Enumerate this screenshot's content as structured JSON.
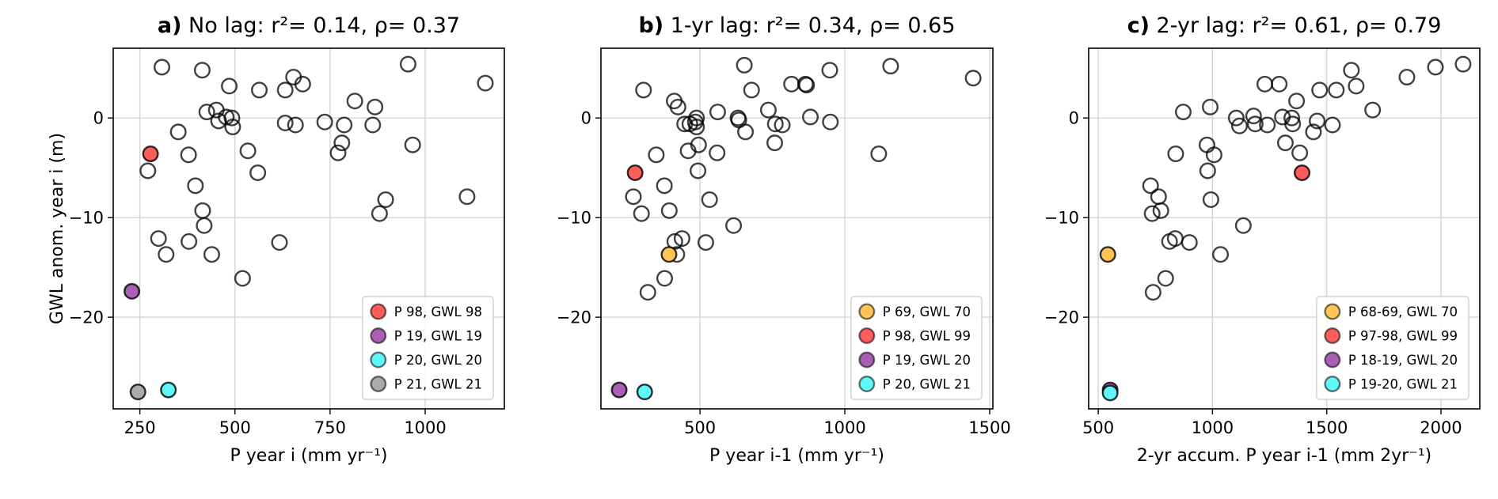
{
  "chart_data": [
    {
      "type": "scatter",
      "panel_label": "a)",
      "title": "No lag: r²= 0.14, ρ= 0.37",
      "xlabel": "P year i (mm yr⁻¹)",
      "ylabel": "GWL anom. year i (m)",
      "xlim": [
        180,
        1208
      ],
      "ylim": [
        -29.2,
        7.0
      ],
      "xticks": [
        250,
        500,
        750,
        1000
      ],
      "yticks": [
        0,
        -10,
        -20
      ],
      "grid": true,
      "legend_placement": "lower-right",
      "points": [
        [
          308,
          5.1
        ],
        [
          414,
          4.8
        ],
        [
          485,
          3.2
        ],
        [
          564,
          2.8
        ],
        [
          632,
          2.8
        ],
        [
          654,
          4.1
        ],
        [
          678,
          3.4
        ],
        [
          955,
          5.4
        ],
        [
          815,
          1.7
        ],
        [
          868,
          1.1
        ],
        [
          426,
          0.6
        ],
        [
          451,
          0.8
        ],
        [
          457,
          -0.3
        ],
        [
          477,
          0.1
        ],
        [
          492,
          0
        ],
        [
          494,
          -0.9
        ],
        [
          632,
          -0.5
        ],
        [
          659,
          -0.7
        ],
        [
          736,
          -0.4
        ],
        [
          787,
          -0.7
        ],
        [
          862,
          -0.7
        ],
        [
          351,
          -1.4
        ],
        [
          781,
          -2.5
        ],
        [
          771,
          -3.5
        ],
        [
          967,
          -2.7
        ],
        [
          378,
          -3.7
        ],
        [
          271,
          -5.3
        ],
        [
          534,
          -3.3
        ],
        [
          560,
          -5.5
        ],
        [
          396,
          -6.8
        ],
        [
          415,
          -9.3
        ],
        [
          419,
          -10.8
        ],
        [
          896,
          -8.2
        ],
        [
          880,
          -9.6
        ],
        [
          299,
          -12.1
        ],
        [
          319,
          -13.7
        ],
        [
          379,
          -12.4
        ],
        [
          439,
          -13.7
        ],
        [
          617,
          -12.5
        ],
        [
          520,
          -16.1
        ],
        [
          1158,
          3.5
        ],
        [
          1110,
          -7.9
        ]
      ],
      "highlights": [
        {
          "label": "P 98, GWL 98",
          "color": "#ff5c5c",
          "x": 278,
          "y": -3.6
        },
        {
          "label": "P 19, GWL 19",
          "color": "#a95fb3",
          "x": 229,
          "y": -17.4
        },
        {
          "label": "P 20, GWL 20",
          "color": "#5ff7f7",
          "x": 325,
          "y": -27.3
        },
        {
          "label": "P 21, GWL 21",
          "color": "#aaaaaa",
          "x": 245,
          "y": -27.5
        }
      ]
    },
    {
      "type": "scatter",
      "panel_label": "b)",
      "title": "1-yr lag: r²= 0.34, ρ= 0.65",
      "xlabel": "P year i-1 (mm yr⁻¹)",
      "ylabel": "",
      "xlim": [
        158,
        1511
      ],
      "ylim": [
        -29.2,
        7.0
      ],
      "xticks": [
        500,
        1000,
        1500
      ],
      "yticks": [
        0,
        -10,
        -20
      ],
      "grid": true,
      "legend_placement": "lower-right",
      "points": [
        [
          305,
          2.8
        ],
        [
          411,
          1.7
        ],
        [
          424,
          1.1
        ],
        [
          447,
          -0.6
        ],
        [
          465,
          -0.6
        ],
        [
          488,
          0
        ],
        [
          484,
          -0.4
        ],
        [
          488,
          -0.9
        ],
        [
          495,
          -2.7
        ],
        [
          459,
          -3.3
        ],
        [
          349,
          -3.7
        ],
        [
          561,
          0.6
        ],
        [
          559,
          -3.5
        ],
        [
          493,
          -5.3
        ],
        [
          631,
          0
        ],
        [
          634,
          -0.2
        ],
        [
          657,
          -1.4
        ],
        [
          653,
          5.3
        ],
        [
          678,
          2.8
        ],
        [
          736,
          0.8
        ],
        [
          760,
          -0.6
        ],
        [
          784,
          -0.7
        ],
        [
          758,
          -2.5
        ],
        [
          816,
          3.4
        ],
        [
          864,
          3.4
        ],
        [
          868,
          3.3
        ],
        [
          881,
          0.1
        ],
        [
          948,
          4.8
        ],
        [
          950,
          -0.4
        ],
        [
          270,
          -7.9
        ],
        [
          377,
          -6.8
        ],
        [
          298,
          -9.6
        ],
        [
          394,
          -9.3
        ],
        [
          533,
          -8.2
        ],
        [
          616,
          -10.8
        ],
        [
          438,
          -12.1
        ],
        [
          413,
          -12.4
        ],
        [
          520,
          -12.5
        ],
        [
          420,
          -13.7
        ],
        [
          378,
          -16.1
        ],
        [
          320,
          -17.5
        ],
        [
          1117,
          -3.6
        ],
        [
          1158,
          5.2
        ],
        [
          1443,
          4.0
        ]
      ],
      "highlights": [
        {
          "label": "P 69, GWL 70",
          "color": "#ffc455",
          "x": 393,
          "y": -13.7
        },
        {
          "label": "P 98, GWL 99",
          "color": "#ff5c5c",
          "x": 276,
          "y": -5.5
        },
        {
          "label": "P 19, GWL 20",
          "color": "#a95fb3",
          "x": 221,
          "y": -27.3
        },
        {
          "label": "P 20, GWL 21",
          "color": "#5ff7f7",
          "x": 309,
          "y": -27.5
        }
      ]
    },
    {
      "type": "scatter",
      "panel_label": "c)",
      "title": "2-yr lag: r²= 0.61, ρ= 0.79",
      "xlabel": "2-yr accum. P year i-1 (mm 2yr⁻¹)",
      "ylabel": "",
      "xlim": [
        458,
        2170
      ],
      "ylim": [
        -29.2,
        7.0
      ],
      "xticks": [
        500,
        1000,
        1500,
        2000
      ],
      "yticks": [
        0,
        -10,
        -20
      ],
      "grid": true,
      "legend_placement": "lower-right",
      "points": [
        [
          872,
          0.6
        ],
        [
          990,
          1.1
        ],
        [
          839,
          -3.6
        ],
        [
          976,
          -2.7
        ],
        [
          1007,
          -3.7
        ],
        [
          979,
          -5.3
        ],
        [
          993,
          -8.2
        ],
        [
          729,
          -6.8
        ],
        [
          764,
          -7.9
        ],
        [
          736,
          -9.6
        ],
        [
          774,
          -9.3
        ],
        [
          837,
          -12.1
        ],
        [
          812,
          -12.4
        ],
        [
          899,
          -12.5
        ],
        [
          1035,
          -13.7
        ],
        [
          795,
          -16.1
        ],
        [
          740,
          -17.5
        ],
        [
          1135,
          -10.8
        ],
        [
          1229,
          3.4
        ],
        [
          1292,
          3.4
        ],
        [
          1608,
          4.8
        ],
        [
          1629,
          3.2
        ],
        [
          1469,
          2.8
        ],
        [
          1542,
          2.8
        ],
        [
          1368,
          1.7
        ],
        [
          1701,
          0.8
        ],
        [
          1851,
          4.1
        ],
        [
          1976,
          5.1
        ],
        [
          2097,
          5.4
        ],
        [
          1104,
          0
        ],
        [
          1118,
          -0.8
        ],
        [
          1180,
          0.2
        ],
        [
          1187,
          -0.6
        ],
        [
          1240,
          -0.7
        ],
        [
          1306,
          0.1
        ],
        [
          1347,
          0
        ],
        [
          1351,
          -0.6
        ],
        [
          1458,
          -0.3
        ],
        [
          1442,
          -1.4
        ],
        [
          1525,
          -0.7
        ],
        [
          1319,
          -2.5
        ],
        [
          1382,
          -3.5
        ]
      ],
      "highlights": [
        {
          "label": "P 68-69, GWL 70",
          "color": "#ffc455",
          "x": 542,
          "y": -13.7
        },
        {
          "label": "P 97-98, GWL 99",
          "color": "#ff5c5c",
          "x": 1392,
          "y": -5.5
        },
        {
          "label": "P 18-19, GWL 20",
          "color": "#a95fb3",
          "x": 552,
          "y": -27.3
        },
        {
          "label": "P 19-20, GWL 21",
          "color": "#5ff7f7",
          "x": 552,
          "y": -27.6
        }
      ]
    }
  ]
}
